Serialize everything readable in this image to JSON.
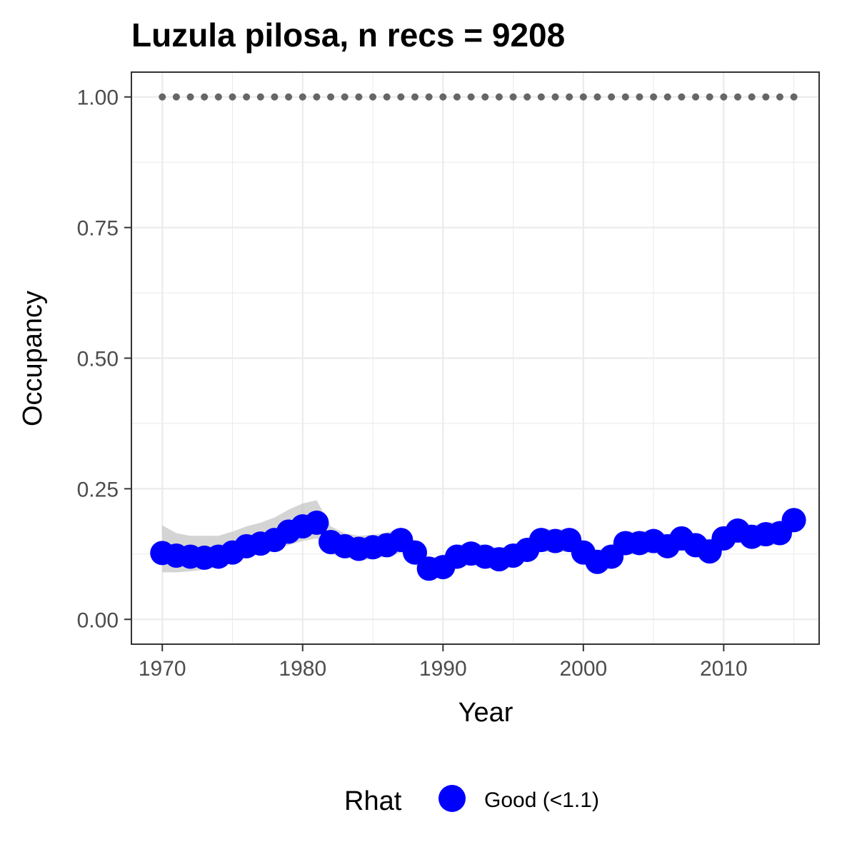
{
  "chart_data": {
    "type": "line",
    "title": "Luzula pilosa, n recs = 9208",
    "xlabel": "Year",
    "ylabel": "Occupancy",
    "xlim": [
      1967.8,
      2016.8
    ],
    "ylim": [
      -0.0475,
      1.0475
    ],
    "x_ticks": [
      1970,
      1980,
      1990,
      2000,
      2010
    ],
    "x_tick_labels": [
      "1970",
      "1980",
      "1990",
      "2000",
      "2010"
    ],
    "y_ticks": [
      0,
      0.25,
      0.5,
      0.75,
      1.0
    ],
    "y_tick_labels": [
      "0.00",
      "0.25",
      "0.50",
      "0.75",
      "1.00"
    ],
    "grid": true,
    "legend": {
      "position": "bottom",
      "title": "Rhat",
      "entries": [
        {
          "label": "Good (<1.1)",
          "color": "#0000ff"
        }
      ]
    },
    "x": [
      1970,
      1971,
      1972,
      1973,
      1974,
      1975,
      1976,
      1977,
      1978,
      1979,
      1980,
      1981,
      1982,
      1983,
      1984,
      1985,
      1986,
      1987,
      1988,
      1989,
      1990,
      1991,
      1992,
      1993,
      1994,
      1995,
      1996,
      1997,
      1998,
      1999,
      2000,
      2001,
      2002,
      2003,
      2004,
      2005,
      2006,
      2007,
      2008,
      2009,
      2010,
      2011,
      2012,
      2013,
      2014,
      2015
    ],
    "series": [
      {
        "name": "Good (<1.1)",
        "color": "#0000ff",
        "values": [
          0.127,
          0.122,
          0.12,
          0.118,
          0.12,
          0.128,
          0.14,
          0.145,
          0.152,
          0.168,
          0.178,
          0.185,
          0.148,
          0.14,
          0.135,
          0.138,
          0.142,
          0.152,
          0.128,
          0.097,
          0.1,
          0.12,
          0.126,
          0.12,
          0.115,
          0.122,
          0.133,
          0.152,
          0.15,
          0.152,
          0.128,
          0.11,
          0.12,
          0.146,
          0.146,
          0.15,
          0.14,
          0.155,
          0.142,
          0.13,
          0.155,
          0.17,
          0.158,
          0.163,
          0.165,
          0.19
        ],
        "lower": [
          0.09,
          0.09,
          0.092,
          0.095,
          0.1,
          0.108,
          0.118,
          0.126,
          0.134,
          0.142,
          0.15,
          0.155,
          0.125,
          0.118,
          0.112,
          0.116,
          0.12,
          0.128,
          0.105,
          0.078,
          0.08,
          0.098,
          0.104,
          0.098,
          0.094,
          0.1,
          0.112,
          0.13,
          0.128,
          0.13,
          0.106,
          0.088,
          0.098,
          0.124,
          0.124,
          0.128,
          0.118,
          0.133,
          0.12,
          0.108,
          0.133,
          0.148,
          0.136,
          0.141,
          0.143,
          0.168
        ],
        "upper": [
          0.18,
          0.165,
          0.16,
          0.16,
          0.16,
          0.168,
          0.178,
          0.185,
          0.195,
          0.21,
          0.222,
          0.228,
          0.178,
          0.165,
          0.16,
          0.162,
          0.166,
          0.176,
          0.15,
          0.118,
          0.122,
          0.142,
          0.148,
          0.142,
          0.136,
          0.144,
          0.155,
          0.174,
          0.172,
          0.174,
          0.15,
          0.132,
          0.142,
          0.168,
          0.168,
          0.172,
          0.162,
          0.177,
          0.164,
          0.152,
          0.177,
          0.192,
          0.18,
          0.185,
          0.187,
          0.212
        ]
      }
    ],
    "reference_points": {
      "y": 1.0,
      "color": "#666666",
      "style": "dotted"
    }
  }
}
